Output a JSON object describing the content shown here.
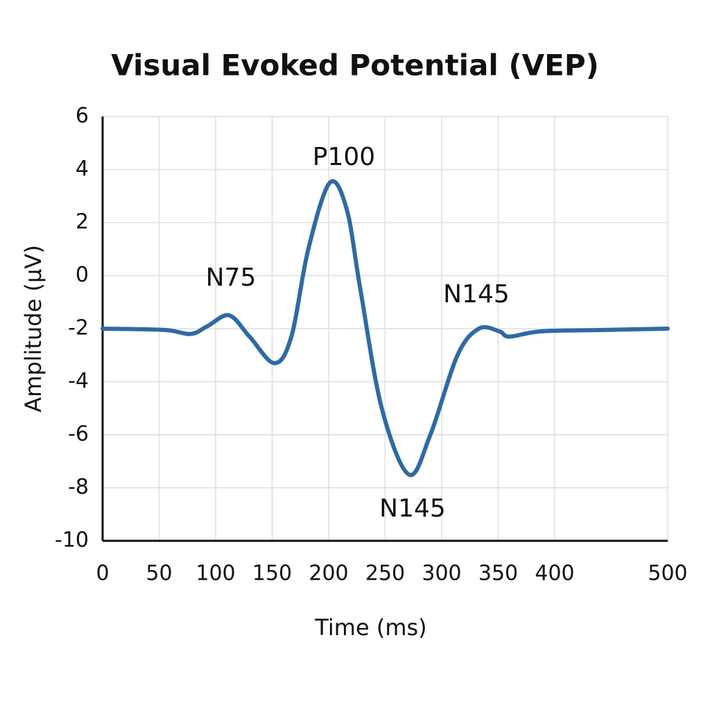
{
  "chart_data": {
    "type": "line",
    "title": "Visual Evoked Potential (VEP)",
    "x_label": "Time (ms)",
    "y_label": "Amplitude (µV)",
    "x": [
      0,
      55,
      78,
      93,
      112,
      130,
      152,
      167,
      182,
      201,
      216,
      228,
      247,
      271,
      290,
      314,
      333,
      351,
      360,
      388,
      443,
      500
    ],
    "series": [
      {
        "name": "VEP",
        "color": "#2f6aa3",
        "values": [
          -2.0,
          -2.05,
          -2.2,
          -1.9,
          -1.5,
          -2.3,
          -3.3,
          -2.3,
          1.0,
          3.5,
          2.5,
          -0.5,
          -5.0,
          -7.5,
          -6.0,
          -3.0,
          -2.0,
          -2.1,
          -2.3,
          -2.1,
          -2.05,
          -2.0
        ]
      }
    ],
    "xlim": [
      0,
      500
    ],
    "xticks": [
      0,
      50,
      100,
      150,
      200,
      250,
      300,
      350,
      400,
      500
    ],
    "ylim": [
      -10,
      6
    ],
    "yticks": [
      6,
      4,
      2,
      0,
      -2,
      -4,
      -6,
      -8,
      -10
    ],
    "grid": true,
    "annotations": [
      "N75",
      "P100",
      "N145",
      "N145"
    ]
  }
}
